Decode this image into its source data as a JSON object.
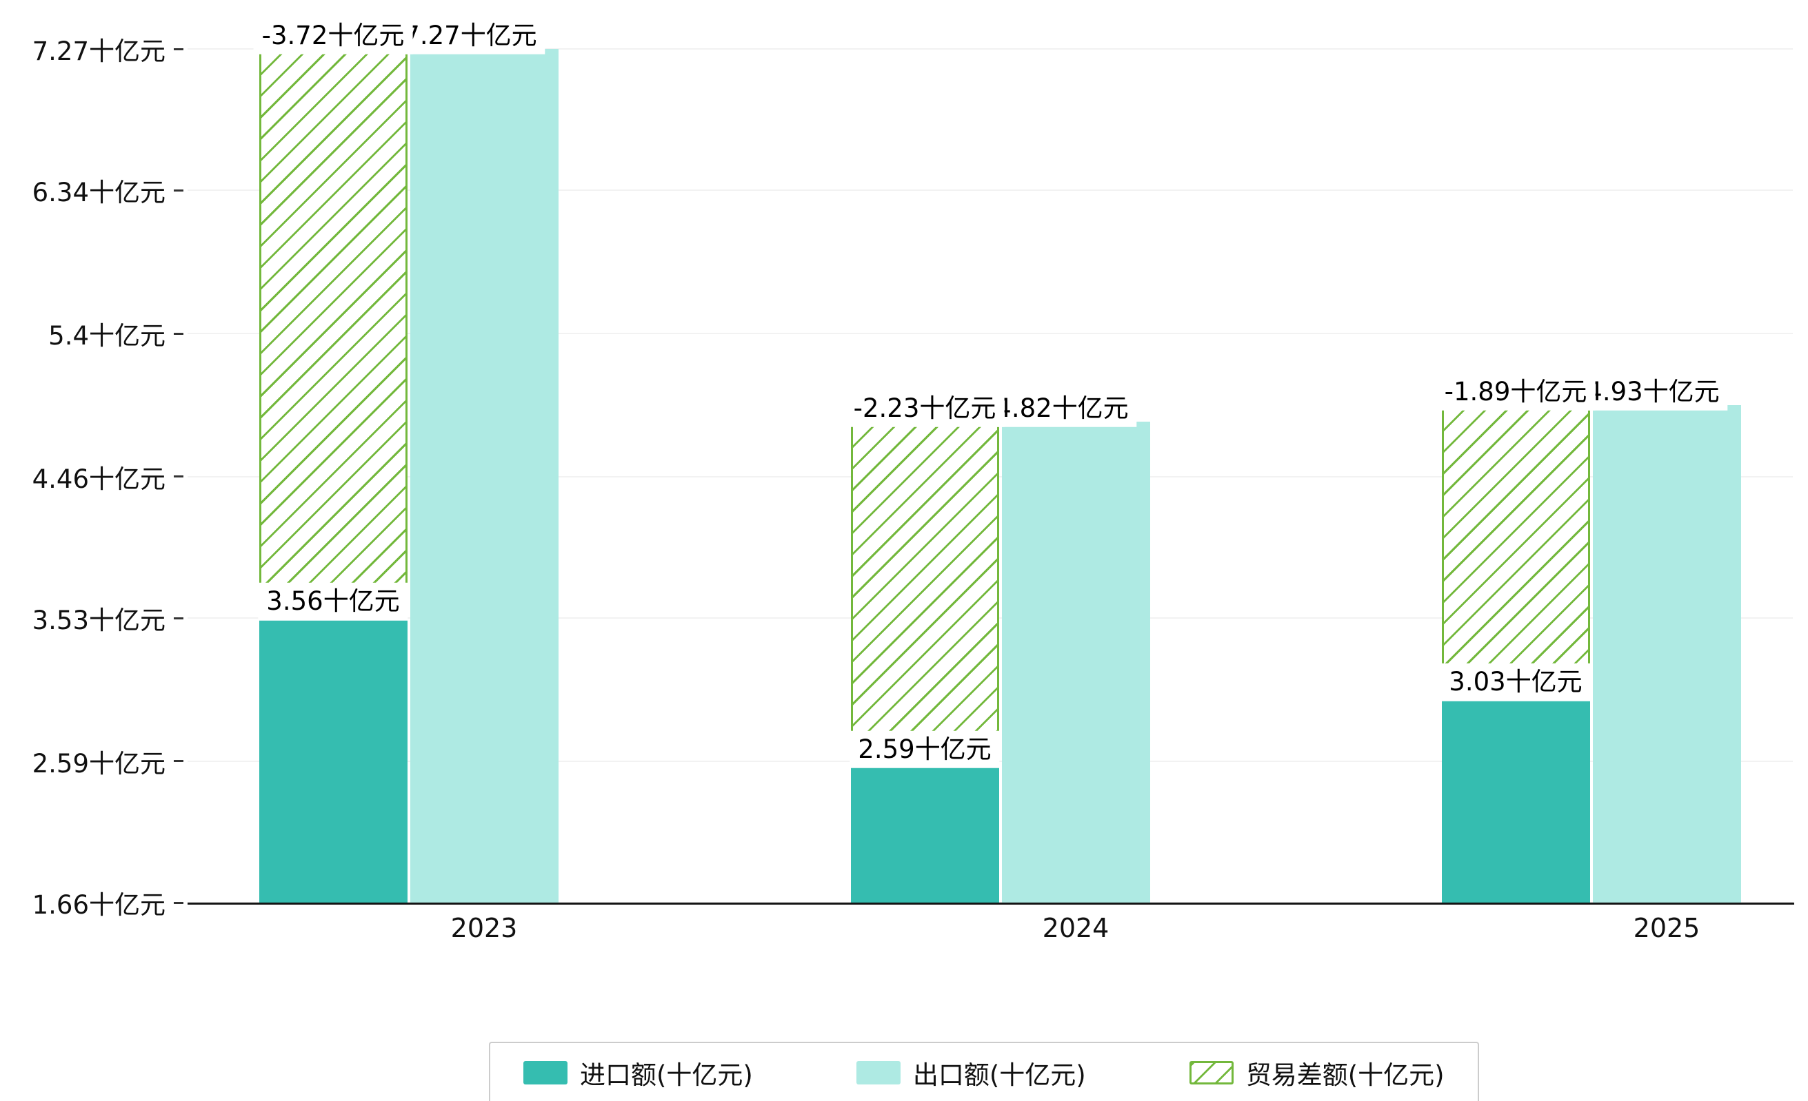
{
  "chart_data": {
    "type": "bar",
    "title": "",
    "categories": [
      "2023",
      "2024",
      "2025"
    ],
    "series": [
      {
        "name": "进口额(十亿元)",
        "role": "import",
        "color": "#35bdb0",
        "values": [
          3.56,
          2.59,
          3.03
        ],
        "value_labels": [
          "3.56十亿元",
          "2.59十亿元",
          "3.03十亿元"
        ]
      },
      {
        "name": "出口额(十亿元)",
        "role": "export",
        "color": "#aeeae3",
        "values": [
          7.27,
          4.82,
          4.93
        ],
        "value_labels": [
          "7.27十亿元",
          "4.82十亿元",
          "4.93十亿元"
        ]
      },
      {
        "name": "贸易差额(十亿元)",
        "role": "trade-balance",
        "color": "#73b83c",
        "style": "hatched",
        "render_hint": "floating hatched bar spanning from import value up to export value, drawn over the import bar position",
        "values": [
          -3.72,
          -2.23,
          -1.89
        ],
        "value_labels": [
          "-3.72十亿元",
          "-2.23十亿元",
          "-1.89十亿元"
        ]
      }
    ],
    "xlabel": "",
    "ylabel": "",
    "y_axis": {
      "min": 1.66,
      "max": 7.27,
      "ticks": [
        7.27,
        6.34,
        5.4,
        4.46,
        3.53,
        2.59,
        1.66
      ],
      "tick_labels": [
        "7.27十亿元",
        "6.34十亿元",
        "5.4十亿元",
        "4.46十亿元",
        "3.53十亿元",
        "2.59十亿元",
        "1.66十亿元"
      ]
    },
    "grid": true,
    "legend": {
      "position": "bottom",
      "items": [
        "进口额(十亿元)",
        "出口额(十亿元)",
        "贸易差额(十亿元)"
      ]
    }
  },
  "colors": {
    "background": "#ffffff",
    "axis": "#141414",
    "gridline": "#f2f2f2",
    "text": "#111111",
    "label_box_background": "#ffffff",
    "legend_border": "#cccccc"
  }
}
